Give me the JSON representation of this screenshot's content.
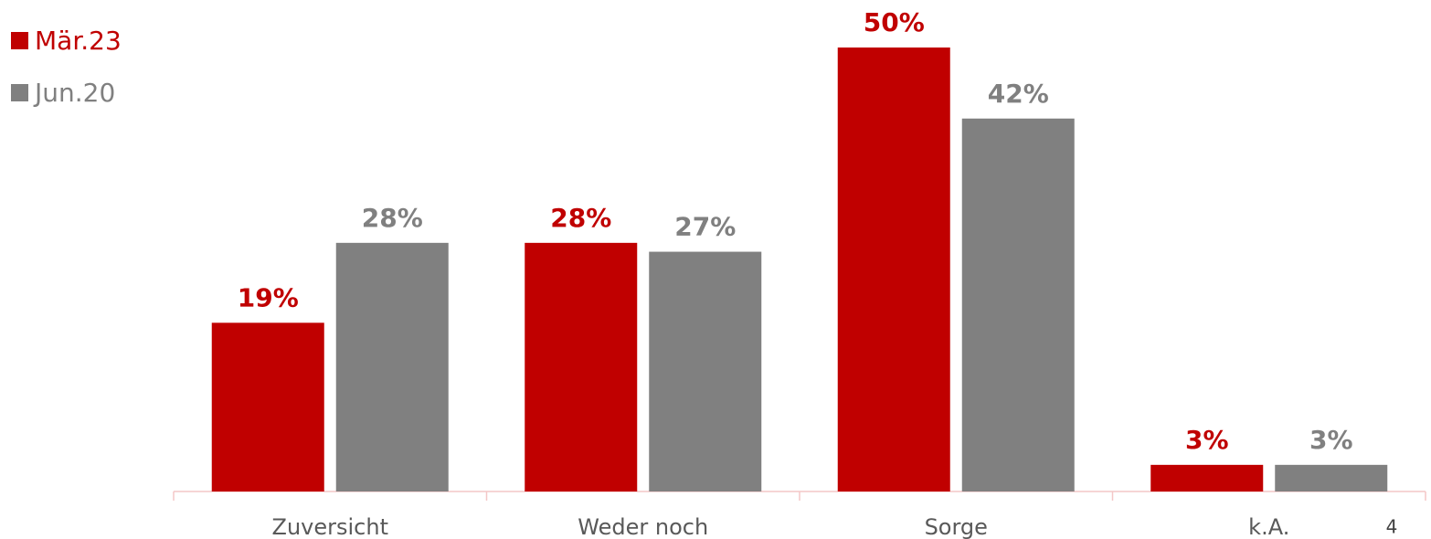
{
  "chart_data": {
    "type": "bar",
    "categories": [
      "Zuversicht",
      "Weder noch",
      "Sorge",
      "k.A."
    ],
    "series": [
      {
        "name": "Mär.23",
        "color": "#c00000",
        "values": [
          19,
          28,
          50,
          3
        ],
        "value_labels": [
          "19%",
          "28%",
          "50%",
          "3%"
        ]
      },
      {
        "name": "Jun.20",
        "color": "#808080",
        "values": [
          28,
          27,
          42,
          3
        ],
        "value_labels": [
          "28%",
          "27%",
          "42%",
          "3%"
        ]
      }
    ],
    "ylim": [
      0,
      55
    ],
    "legend": "top-left"
  },
  "page_number": 4
}
